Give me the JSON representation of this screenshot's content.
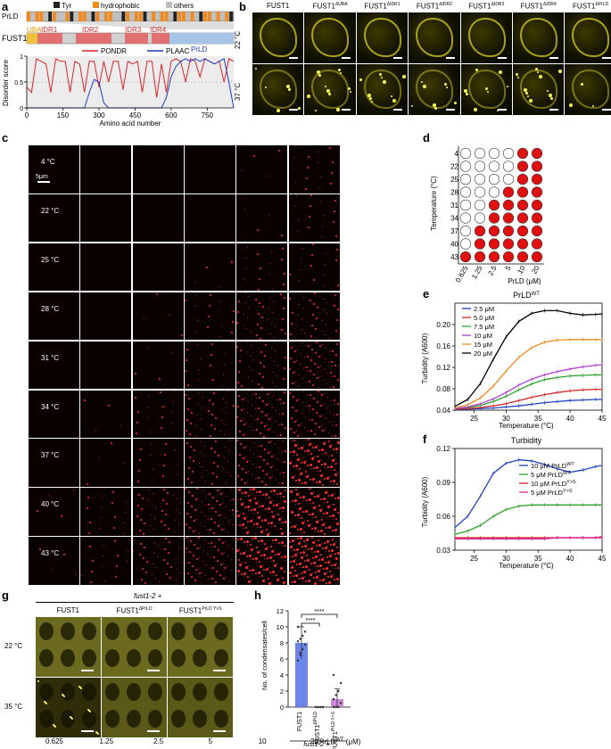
{
  "panels": {
    "a": {
      "label": "a",
      "legend": [
        "Tyr",
        "hydrophobic",
        "others"
      ],
      "legend_colors": [
        "#222222",
        "#f08a1e",
        "#bfbfbf"
      ],
      "prld_label": "PrLD",
      "fust1_label": "FUST1",
      "domains": [
        "UBA",
        "IDR1",
        "IDR2",
        "IDR3",
        "IDR4",
        "PrLD"
      ],
      "series": [
        "PONDR",
        "PLAAC"
      ],
      "ylabel": "Disorder score",
      "xlabel": "Amino acid number",
      "xticks": [
        "0",
        "150",
        "300",
        "450",
        "600",
        "750"
      ],
      "yticks": [
        "0",
        "0.5",
        "1"
      ]
    },
    "b": {
      "label": "b",
      "columns": [
        "FUST1",
        "FUST1",
        "FUST1",
        "FUST1",
        "FUST1",
        "FUST1",
        "FUST1"
      ],
      "col_sup": [
        "",
        "ΔUBA",
        "ΔIDR1",
        "ΔIDR2",
        "ΔIDR3",
        "ΔIDR4",
        "ΔPrLD"
      ],
      "rows": [
        "22 °C",
        "37 °C"
      ]
    },
    "c": {
      "label": "c",
      "rows": [
        "4 °C",
        "22 °C",
        "25 °C",
        "28 °C",
        "31 °C",
        "34 °C",
        "37 °C",
        "40 °C",
        "43 °C"
      ],
      "columns": [
        "0.625",
        "1.25",
        "2.5",
        "5",
        "10",
        "20"
      ],
      "xlabel": "PrLD",
      "xlabel_sup": "WT",
      "xlabel_unit": "(μM)",
      "scalebar": "5μm"
    },
    "d": {
      "label": "d",
      "ylabel": "Temperature (°C)",
      "xlabel": "PrLD (μM)",
      "temps": [
        "4",
        "22",
        "25",
        "28",
        "31",
        "34",
        "37",
        "40",
        "43"
      ],
      "concs": [
        "0.625",
        "1.25",
        "2.5",
        "5",
        "10",
        "20"
      ]
    },
    "e": {
      "label": "e",
      "title": "PrLD",
      "title_sup": "WT",
      "ylabel": "Turbidity (A600)",
      "xlabel": "Temperature (°C)",
      "xticks": [
        "25",
        "30",
        "35",
        "40",
        "45"
      ],
      "yticks": [
        "0.04",
        "0.08",
        "0.12",
        "0.16",
        "0.20"
      ],
      "legend": [
        "2.5 μM",
        "5.0 μM",
        "7.5 μM",
        "10 μM",
        "15 μM",
        "20 μM"
      ]
    },
    "f": {
      "label": "f",
      "title": "Turbidity",
      "ylabel": "Turbidity (A600)",
      "xlabel": "Temperature (°C)",
      "xticks": [
        "25",
        "30",
        "35",
        "40",
        "45"
      ],
      "yticks": [
        "0.03",
        "0.06",
        "0.09",
        "0.12"
      ],
      "legend": [
        "10 μM PrLD",
        "5 μM PrLD",
        "10 μM PrLD",
        "5 μM PrLD"
      ],
      "legend_sup": [
        "WT",
        "WT",
        "Y>S",
        "Y>S"
      ]
    },
    "g": {
      "label": "g",
      "header": "fust1-2 +",
      "columns": [
        "FUST1",
        "FUST1",
        "FUST1"
      ],
      "col_sup": [
        "",
        "ΔPrLD",
        "PrLD Y>S"
      ],
      "rows": [
        "22 °C",
        "35 °C"
      ]
    },
    "h": {
      "label": "h",
      "ylabel": "No. of condensates/cell",
      "yticks": [
        "0",
        "2",
        "4",
        "6",
        "8",
        "10",
        "12"
      ],
      "categories": [
        "FUST1",
        "FUST1",
        "FUST1"
      ],
      "cat_sup": [
        "",
        "ΔPrLD",
        "PrLD Y>S"
      ],
      "sig": [
        "****",
        "****"
      ],
      "footer": "fust1-2 +"
    }
  },
  "chart_data": [
    {
      "panel": "a",
      "type": "line",
      "x_range": [
        0,
        860
      ],
      "ylim": [
        0,
        1
      ],
      "series": [
        {
          "name": "PONDR",
          "color": "#d62728",
          "x": [
            0,
            20,
            40,
            60,
            80,
            100,
            120,
            140,
            160,
            180,
            200,
            220,
            240,
            260,
            280,
            300,
            320,
            340,
            360,
            380,
            400,
            420,
            440,
            460,
            480,
            500,
            520,
            540,
            560,
            580,
            600,
            620,
            640,
            660,
            680,
            700,
            720,
            740,
            760,
            780,
            800,
            820,
            840,
            860
          ],
          "y": [
            0.4,
            0.3,
            0.95,
            0.9,
            0.85,
            0.3,
            0.95,
            0.9,
            0.9,
            0.3,
            0.9,
            0.85,
            0.3,
            0.9,
            0.9,
            0.4,
            0.9,
            0.5,
            0.9,
            0.9,
            0.35,
            0.9,
            0.85,
            0.9,
            0.3,
            0.9,
            0.9,
            0.2,
            0.85,
            0.3,
            0.9,
            0.95,
            0.9,
            0.5,
            0.95,
            0.9,
            0.6,
            0.95,
            0.9,
            0.85,
            0.9,
            0.5,
            0.95,
            0.9
          ]
        },
        {
          "name": "PLAAC",
          "color": "#1f3fbf",
          "x": [
            0,
            100,
            200,
            240,
            260,
            280,
            300,
            320,
            340,
            400,
            500,
            560,
            580,
            600,
            620,
            640,
            660,
            680,
            700,
            720,
            740,
            760,
            780,
            800,
            820,
            840,
            860
          ],
          "y": [
            0,
            0,
            0,
            0,
            0.3,
            0.55,
            0.5,
            0.1,
            0,
            0,
            0,
            0,
            0.2,
            0.6,
            0.8,
            0.9,
            0.95,
            0.9,
            0.95,
            0.9,
            0.95,
            0.9,
            0.85,
            0.9,
            0.95,
            0.5,
            0
          ]
        }
      ]
    },
    {
      "panel": "d",
      "type": "table",
      "rows": [
        "4",
        "22",
        "25",
        "28",
        "31",
        "34",
        "37",
        "40",
        "43"
      ],
      "columns": [
        "0.625",
        "1.25",
        "2.5",
        "5",
        "10",
        "20"
      ],
      "phase_separated": [
        [
          0,
          0,
          0,
          0,
          1,
          1
        ],
        [
          0,
          0,
          0,
          0,
          1,
          1
        ],
        [
          0,
          0,
          0,
          0,
          1,
          1
        ],
        [
          0,
          0,
          0,
          1,
          1,
          1
        ],
        [
          0,
          0,
          1,
          1,
          1,
          1
        ],
        [
          0,
          0,
          1,
          1,
          1,
          1
        ],
        [
          0,
          1,
          1,
          1,
          1,
          1
        ],
        [
          0,
          1,
          1,
          1,
          1,
          1
        ],
        [
          1,
          1,
          1,
          1,
          1,
          1
        ]
      ]
    },
    {
      "panel": "e",
      "type": "line",
      "xlim": [
        22,
        45
      ],
      "ylim": [
        0.04,
        0.24
      ],
      "x": [
        22,
        24,
        26,
        28,
        30,
        32,
        34,
        36,
        38,
        40,
        42,
        44,
        45
      ],
      "series": [
        {
          "name": "2.5 μM",
          "color": "#1f3fbf",
          "values": [
            0.041,
            0.042,
            0.043,
            0.044,
            0.046,
            0.048,
            0.051,
            0.054,
            0.056,
            0.058,
            0.059,
            0.06,
            0.06
          ]
        },
        {
          "name": "5.0 μM",
          "color": "#d62728",
          "values": [
            0.042,
            0.043,
            0.045,
            0.048,
            0.052,
            0.058,
            0.064,
            0.069,
            0.073,
            0.076,
            0.078,
            0.079,
            0.079
          ]
        },
        {
          "name": "7.5 μM",
          "color": "#2ca02c",
          "values": [
            0.043,
            0.045,
            0.049,
            0.056,
            0.066,
            0.078,
            0.089,
            0.097,
            0.101,
            0.104,
            0.105,
            0.106,
            0.106
          ]
        },
        {
          "name": "10 μM",
          "color": "#b23ad6",
          "values": [
            0.043,
            0.046,
            0.052,
            0.061,
            0.073,
            0.087,
            0.098,
            0.106,
            0.112,
            0.117,
            0.121,
            0.124,
            0.125
          ]
        },
        {
          "name": "15 μM",
          "color": "#f08a1e",
          "values": [
            0.044,
            0.05,
            0.063,
            0.085,
            0.113,
            0.139,
            0.157,
            0.167,
            0.171,
            0.172,
            0.172,
            0.172,
            0.172
          ]
        },
        {
          "name": "20 μM",
          "color": "#000000",
          "values": [
            0.047,
            0.06,
            0.09,
            0.135,
            0.177,
            0.206,
            0.221,
            0.226,
            0.226,
            0.221,
            0.218,
            0.219,
            0.22
          ]
        }
      ]
    },
    {
      "panel": "f",
      "type": "line",
      "xlim": [
        22,
        45
      ],
      "ylim": [
        0.03,
        0.12
      ],
      "x": [
        22,
        24,
        26,
        28,
        30,
        32,
        34,
        36,
        38,
        40,
        42,
        44,
        45
      ],
      "series": [
        {
          "name": "10 μM PrLD WT",
          "color": "#1f3fbf",
          "values": [
            0.05,
            0.06,
            0.078,
            0.098,
            0.107,
            0.11,
            0.109,
            0.106,
            0.102,
            0.099,
            0.101,
            0.104,
            0.105
          ]
        },
        {
          "name": "5 μM PrLD WT",
          "color": "#2ca02c",
          "values": [
            0.044,
            0.047,
            0.052,
            0.06,
            0.066,
            0.069,
            0.07,
            0.07,
            0.07,
            0.07,
            0.07,
            0.07,
            0.07
          ]
        },
        {
          "name": "10 μM PrLD Y>S",
          "color": "#d62728",
          "values": [
            0.041,
            0.041,
            0.041,
            0.041,
            0.041,
            0.041,
            0.041,
            0.041,
            0.041,
            0.041,
            0.041,
            0.041,
            0.042
          ]
        },
        {
          "name": "5 μM PrLD Y>S",
          "color": "#d6279a",
          "values": [
            0.04,
            0.04,
            0.04,
            0.04,
            0.04,
            0.04,
            0.04,
            0.04,
            0.041,
            0.041,
            0.041,
            0.041,
            0.041
          ]
        }
      ]
    },
    {
      "panel": "h",
      "type": "bar",
      "categories": [
        "FUST1",
        "FUST1 ΔPrLD",
        "FUST1 PrLD Y>S"
      ],
      "values": [
        8.0,
        0.0,
        1.0
      ],
      "errors": [
        2.0,
        0.0,
        1.3
      ],
      "colors": [
        "#5b79e8",
        "#e05050",
        "#c77dd6"
      ],
      "ylim": [
        0,
        12
      ],
      "points": [
        [
          5.8,
          6.5,
          7.2,
          7.8,
          8.2,
          8.5,
          8.9,
          9.4,
          10.0,
          6.8
        ],
        [
          0,
          0,
          0,
          0,
          0,
          0,
          0,
          0
        ],
        [
          0,
          0,
          0,
          0.5,
          1,
          1.5,
          2,
          3,
          4,
          0
        ]
      ]
    }
  ]
}
